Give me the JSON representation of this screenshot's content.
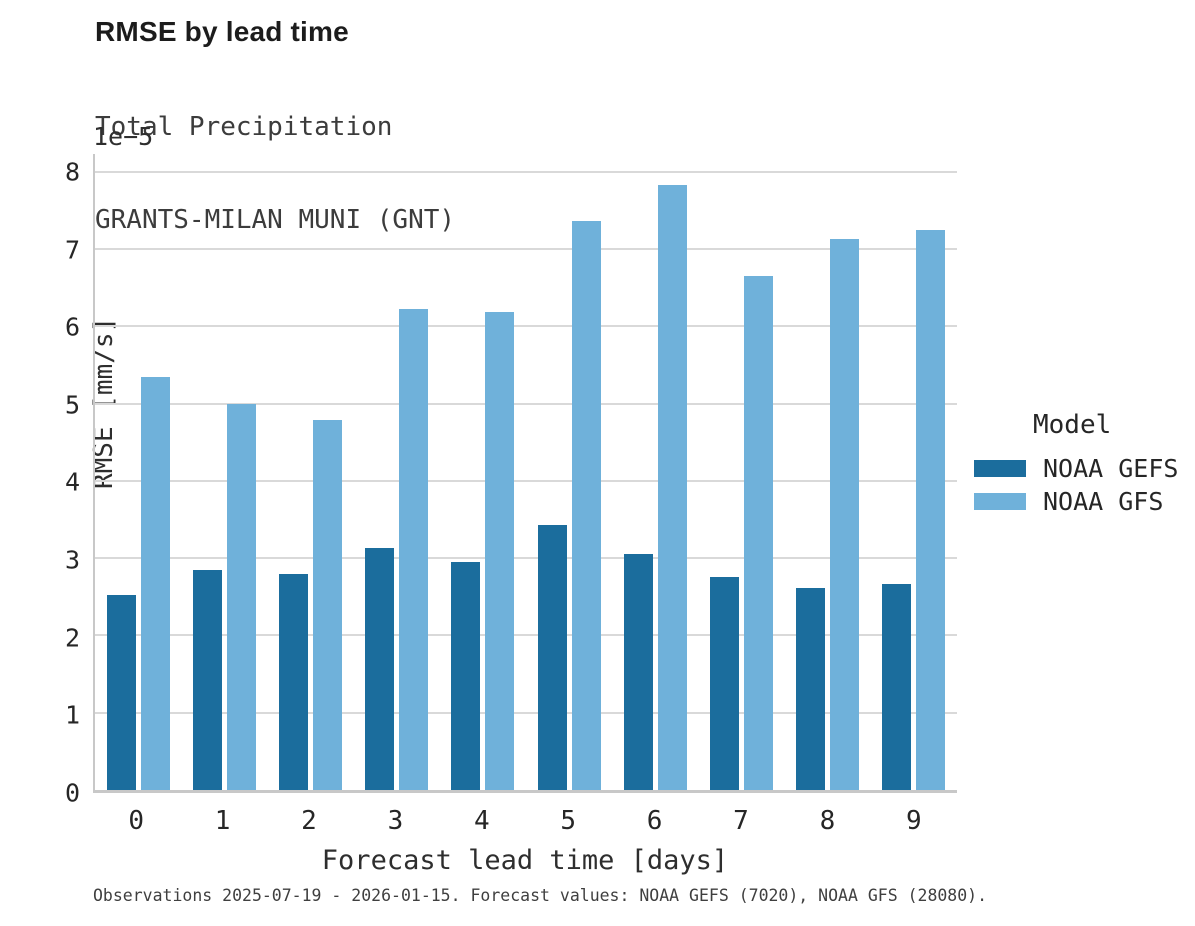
{
  "header": {
    "title": "RMSE by lead time",
    "subtitle_line1": "Total Precipitation",
    "subtitle_line2": "GRANTS-MILAN MUNI (GNT)"
  },
  "axes": {
    "offset_label": "1e−5",
    "ylabel": "RMSE [mm/s]",
    "xlabel": "Forecast lead time [days]"
  },
  "legend": {
    "title": "Model",
    "items": [
      {
        "label": "NOAA GEFS",
        "color": "#1b6d9d"
      },
      {
        "label": "NOAA GFS",
        "color": "#6fb1da"
      }
    ]
  },
  "footnote": "Observations 2025-07-19 - 2026-01-15. Forecast values: NOAA GEFS (7020), NOAA GFS (28080).",
  "chart_data": {
    "type": "bar",
    "title": "RMSE by lead time",
    "subtitle": [
      "Total Precipitation",
      "GRANTS-MILAN MUNI (GNT)"
    ],
    "xlabel": "Forecast lead time [days]",
    "ylabel": "RMSE [mm/s]",
    "value_offset_text": "1e−5",
    "value_units": "values are in units of 1e-5 mm/s",
    "categories": [
      "0",
      "1",
      "2",
      "3",
      "4",
      "5",
      "6",
      "7",
      "8",
      "9"
    ],
    "series": [
      {
        "name": "NOAA GEFS",
        "color": "#1b6d9d",
        "values": [
          2.53,
          2.85,
          2.79,
          3.13,
          2.95,
          3.43,
          3.05,
          2.76,
          2.62,
          2.66
        ]
      },
      {
        "name": "NOAA GFS",
        "color": "#6fb1da",
        "values": [
          5.35,
          4.99,
          4.79,
          6.22,
          6.19,
          7.36,
          7.83,
          6.65,
          7.13,
          7.25
        ]
      }
    ],
    "ylim": [
      0,
      8.23
    ],
    "yticks": [
      0,
      1,
      2,
      3,
      4,
      5,
      6,
      7,
      8
    ],
    "grid": true,
    "grid_axis": "y",
    "legend_position": "right",
    "legend_title": "Model"
  }
}
